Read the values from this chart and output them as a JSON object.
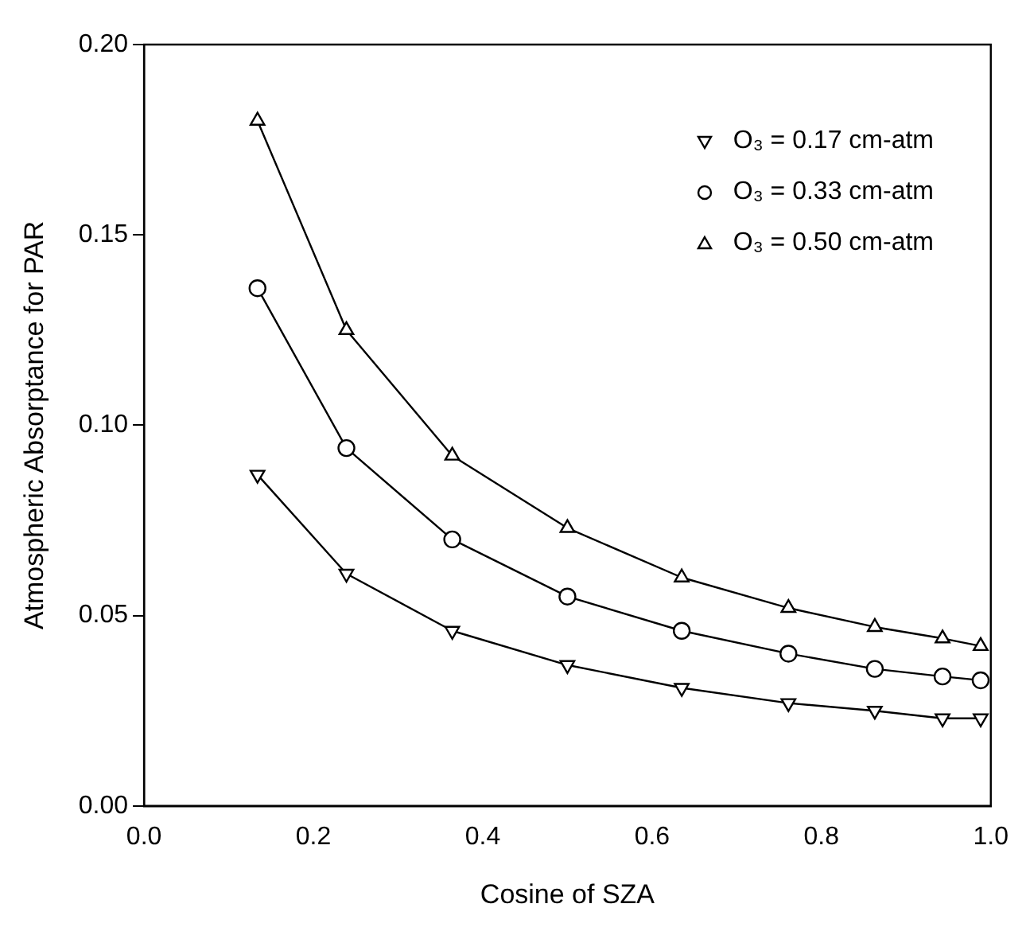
{
  "chart_data": {
    "type": "line",
    "xlabel": "Cosine of SZA",
    "ylabel": "Atmospheric Absorptance for PAR",
    "x": [
      0.134,
      0.239,
      0.364,
      0.5,
      0.635,
      0.761,
      0.863,
      0.943,
      0.988
    ],
    "series": [
      {
        "name": "O₃ = 0.17 cm-atm",
        "color": "#000000",
        "marker": "triangle-down",
        "values": [
          0.087,
          0.061,
          0.046,
          0.037,
          0.031,
          0.027,
          0.025,
          0.023,
          0.023
        ]
      },
      {
        "name": "O₃ = 0.33 cm-atm",
        "color": "#000000",
        "marker": "circle",
        "values": [
          0.136,
          0.094,
          0.07,
          0.055,
          0.046,
          0.04,
          0.036,
          0.034,
          0.033
        ]
      },
      {
        "name": "O₃ = 0.50 cm-atm",
        "color": "#000000",
        "marker": "triangle",
        "values": [
          0.18,
          0.125,
          0.092,
          0.073,
          0.06,
          0.052,
          0.047,
          0.044,
          0.042
        ]
      }
    ],
    "xlim": [
      0,
      1
    ],
    "xticks": [
      {
        "value": 0,
        "label": "0.0"
      },
      {
        "value": 0.2,
        "label": "0.2"
      },
      {
        "value": 0.4,
        "label": "0.4"
      },
      {
        "value": 0.6,
        "label": "0.6"
      },
      {
        "value": 0.8,
        "label": "0.8"
      },
      {
        "value": 1,
        "label": "1.0"
      }
    ],
    "ylim": [
      0,
      0.2
    ],
    "yticks": [
      {
        "value": 0,
        "label": "0.00"
      },
      {
        "value": 0.05,
        "label": "0.05"
      },
      {
        "value": 0.1,
        "label": "0.10"
      },
      {
        "value": 0.15,
        "label": "0.15"
      },
      {
        "value": 0.2,
        "label": "0.20"
      }
    ],
    "grid": false,
    "legend": "top right",
    "line_style": "solid"
  }
}
